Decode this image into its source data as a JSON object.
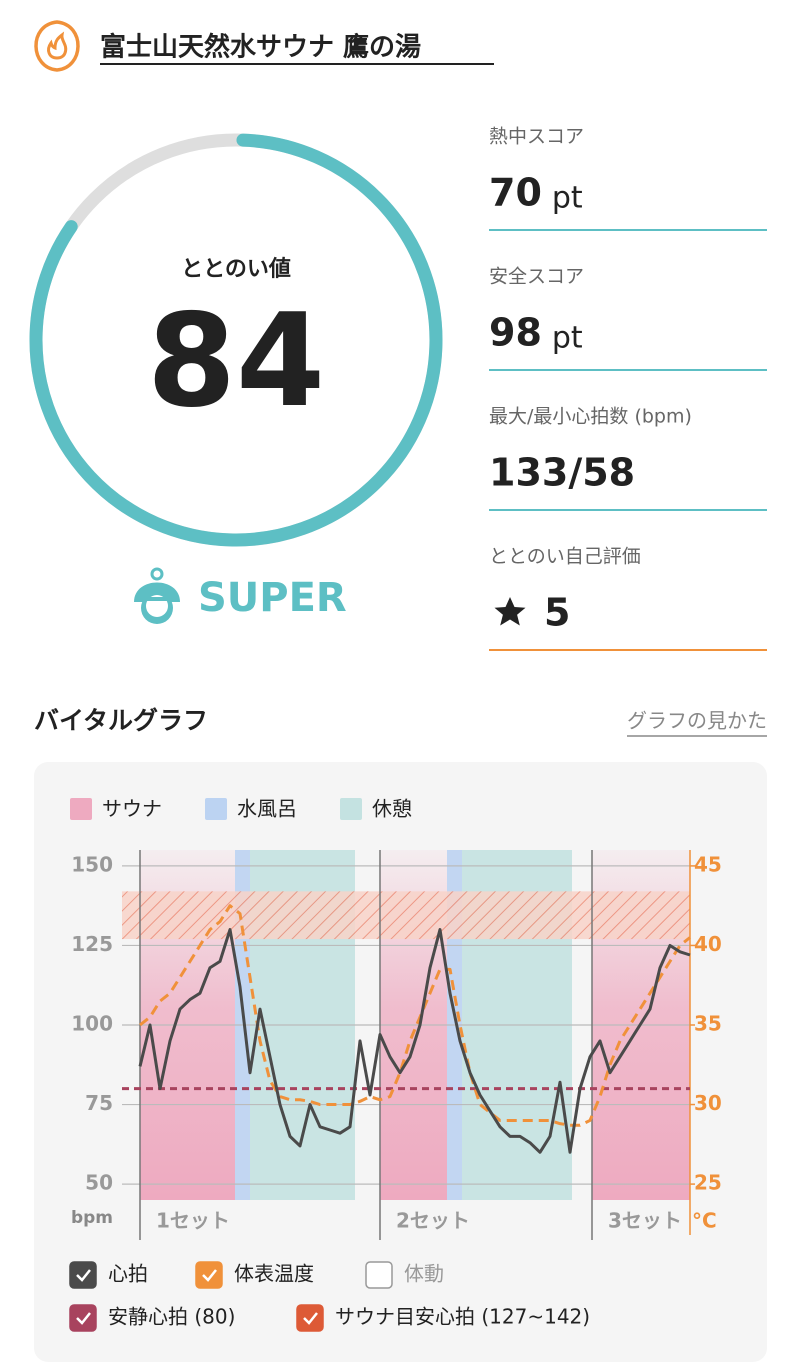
{
  "header": {
    "title": "富士山天然水サウナ 鷹の湯"
  },
  "score": {
    "label": "ととのい値",
    "value": 84,
    "rank": "SUPER"
  },
  "stats": [
    {
      "label": "熱中スコア",
      "value": 70,
      "unit": "pt"
    },
    {
      "label": "安全スコア",
      "value": 98,
      "unit": "pt"
    },
    {
      "label": "最大/最小心拍数 (bpm)",
      "value": "133/58"
    },
    {
      "label": "ととのい自己評価",
      "value": 5
    }
  ],
  "chart_data": {
    "type": "line",
    "title": "バイタルグラフ",
    "link": "グラフの見かた",
    "phase_legend": [
      {
        "name": "サウナ",
        "color": "#eeaac0"
      },
      {
        "name": "水風呂",
        "color": "#bcd3f2"
      },
      {
        "name": "休憩",
        "color": "#c4e2e1"
      }
    ],
    "phases": [
      {
        "phase": 0,
        "x": [
          0,
          19
        ]
      },
      {
        "phase": 1,
        "x": [
          19,
          22
        ]
      },
      {
        "phase": 2,
        "x": [
          22,
          43
        ]
      },
      {
        "phase": 0,
        "x": [
          48,
          61.4
        ]
      },
      {
        "phase": 1,
        "x": [
          61.4,
          64.4
        ]
      },
      {
        "phase": 2,
        "x": [
          64.4,
          86.4
        ]
      },
      {
        "phase": 0,
        "x": [
          90.4,
          110
        ]
      }
    ],
    "sets": [
      {
        "label": "1セット",
        "x": 0
      },
      {
        "label": "2セット",
        "x": 48
      },
      {
        "label": "3セット",
        "x": 90.4
      }
    ],
    "xlim": [
      0,
      110
    ],
    "x": [
      0,
      2,
      4,
      6,
      8,
      10,
      12,
      14,
      16,
      18,
      20,
      22,
      24,
      26,
      28,
      30,
      32,
      34,
      36,
      38,
      40,
      42,
      44,
      46,
      48,
      50,
      52,
      54,
      56,
      58,
      60,
      62,
      64,
      66,
      68,
      70,
      72,
      74,
      76,
      78,
      80,
      82,
      84,
      86,
      88,
      90,
      92,
      94,
      96,
      98,
      100,
      102,
      104,
      106,
      108,
      110
    ],
    "ylim": [
      45,
      155
    ],
    "yticks": [
      50,
      75,
      100,
      125,
      150
    ],
    "y_unit": "bpm",
    "y2lim": [
      24,
      46
    ],
    "y2ticks": [
      25,
      30,
      35,
      40,
      45
    ],
    "y2_unit": "°C",
    "series": [
      {
        "name": "心拍",
        "color": "#4a4a4a",
        "checked": true,
        "values": [
          87,
          100,
          80,
          95,
          105,
          108,
          110,
          118,
          120,
          130,
          112,
          85,
          105,
          90,
          75,
          65,
          62,
          75,
          68,
          67,
          66,
          68,
          95,
          78,
          97,
          90,
          85,
          90,
          100,
          118,
          130,
          110,
          95,
          85,
          78,
          73,
          68,
          65,
          65,
          63,
          60,
          65,
          82,
          60,
          80,
          90,
          95,
          85,
          90,
          95,
          100,
          105,
          118,
          125,
          123,
          122
        ]
      },
      {
        "name": "体表温度",
        "color": "#f0913a",
        "checked": true,
        "axis": "y2",
        "dashed": true,
        "values": [
          35,
          35.5,
          36.5,
          37,
          38,
          39,
          40,
          41,
          41.5,
          42.5,
          42,
          38,
          34,
          31.5,
          30.5,
          30.3,
          30.3,
          30.2,
          30,
          30,
          30,
          30,
          30.2,
          30.5,
          30.3,
          30.5,
          32,
          34,
          35.5,
          37,
          38.5,
          38.5,
          35,
          32,
          30,
          29.5,
          29,
          29,
          29,
          29,
          29,
          29,
          28.8,
          28.7,
          28.7,
          29,
          30.5,
          32.5,
          34,
          35,
          36,
          37,
          38,
          39,
          40,
          40.5
        ]
      }
    ],
    "toggles": [
      {
        "name": "体動",
        "color": "#aaaaaa",
        "checked": false
      }
    ],
    "references": [
      {
        "name": "安静心拍 (80)",
        "value": 80,
        "color": "#a8435e",
        "checked": true
      },
      {
        "name": "サウナ目安心拍 (127~142)",
        "range": [
          127,
          142
        ],
        "color": "#dd5a36",
        "checked": true
      }
    ]
  }
}
